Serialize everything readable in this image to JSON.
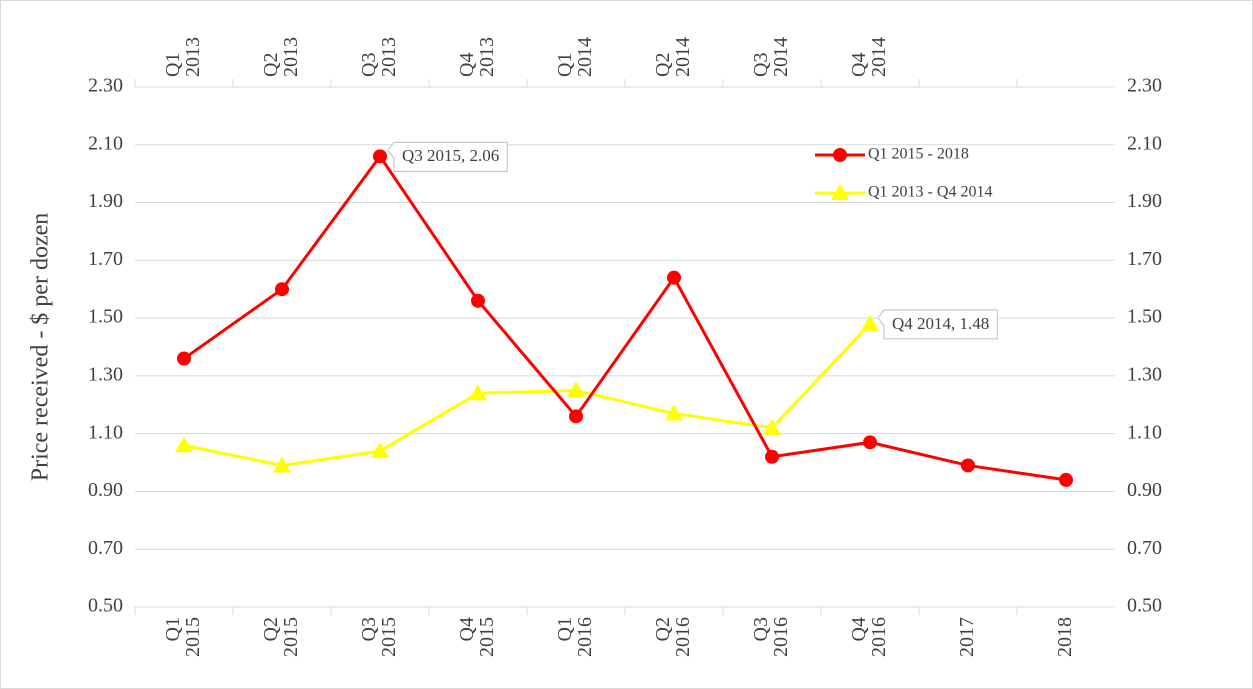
{
  "chart_data": {
    "type": "line",
    "y_label": "Price received - $ per dozen",
    "categories": [
      [
        "Q1",
        "2015"
      ],
      [
        "Q2",
        "2015"
      ],
      [
        "Q3",
        "2015"
      ],
      [
        "Q4",
        "2015"
      ],
      [
        "Q1",
        "2016"
      ],
      [
        "Q2",
        "2016"
      ],
      [
        "Q3",
        "2016"
      ],
      [
        "Q4",
        "2016"
      ],
      [
        "2017"
      ],
      [
        "2018"
      ]
    ],
    "top_categories": [
      [
        "Q1",
        "2013"
      ],
      [
        "Q2",
        "2013"
      ],
      [
        "Q3",
        "2013"
      ],
      [
        "Q4",
        "2013"
      ],
      [
        "Q1",
        "2014"
      ],
      [
        "Q2",
        "2014"
      ],
      [
        "Q3",
        "2014"
      ],
      [
        "Q4",
        "2014"
      ],
      null,
      null
    ],
    "series": [
      {
        "name": "Q1 2015 - 2018",
        "color": "#ff0000",
        "marker": "circle",
        "values": [
          1.36,
          1.6,
          2.06,
          1.56,
          1.16,
          1.64,
          1.02,
          1.07,
          0.99,
          0.94
        ],
        "value_labels": [
          null,
          null,
          "Q3 2015, 2.06",
          null,
          null,
          null,
          null,
          null,
          null,
          null
        ]
      },
      {
        "name": "Q1 2013 - Q4 2014",
        "color": "#ffff00",
        "marker": "triangle",
        "values": [
          1.06,
          0.99,
          1.04,
          1.24,
          1.25,
          1.17,
          1.12,
          1.48,
          null,
          null
        ],
        "value_labels": [
          null,
          null,
          null,
          null,
          null,
          null,
          null,
          "Q4 2014, 1.48",
          null,
          null
        ]
      }
    ],
    "ylim": [
      0.5,
      2.3
    ],
    "yticks": [
      {
        "value": 0.5,
        "label": "0.50"
      },
      {
        "value": 0.7,
        "label": "0.70"
      },
      {
        "value": 0.9,
        "label": "0.90"
      },
      {
        "value": 1.1,
        "label": "1.10"
      },
      {
        "value": 1.3,
        "label": "1.30"
      },
      {
        "value": 1.5,
        "label": "1.50"
      },
      {
        "value": 1.7,
        "label": "1.70"
      },
      {
        "value": 1.9,
        "label": "1.90"
      },
      {
        "value": 2.1,
        "label": "2.10"
      },
      {
        "value": 2.3,
        "label": "2.30"
      }
    ],
    "y2lim": [
      0.5,
      2.3
    ],
    "y2ticks": [
      {
        "value": 0.5,
        "label": "0.50"
      },
      {
        "value": 0.7,
        "label": "0.70"
      },
      {
        "value": 0.9,
        "label": "0.90"
      },
      {
        "value": 1.1,
        "label": "1.10"
      },
      {
        "value": 1.3,
        "label": "1.30"
      },
      {
        "value": 1.5,
        "label": "1.50"
      },
      {
        "value": 1.7,
        "label": "1.70"
      },
      {
        "value": 1.9,
        "label": "1.90"
      },
      {
        "value": 2.1,
        "label": "2.10"
      },
      {
        "value": 2.3,
        "label": "2.30"
      }
    ],
    "grid": true,
    "legend": "upper right"
  }
}
